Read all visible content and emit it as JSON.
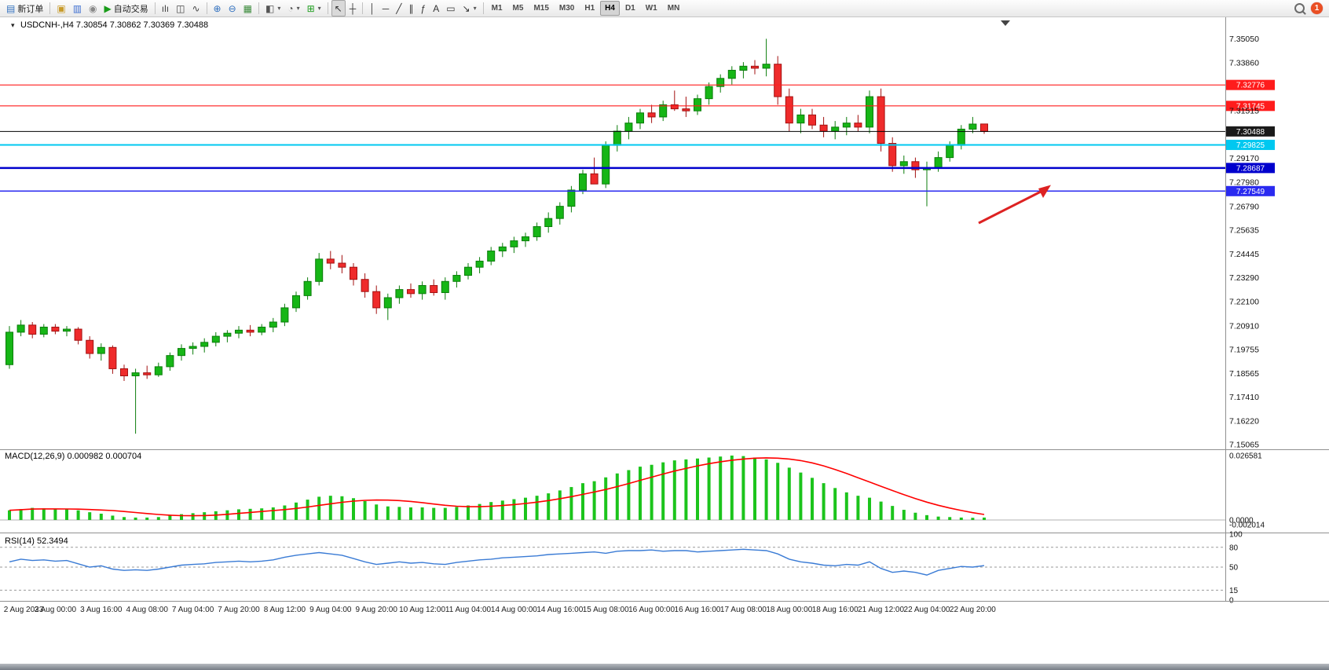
{
  "toolbar": {
    "items": [
      {
        "type": "button",
        "name": "new-order-button",
        "glyph": "▤",
        "glyph_color": "#2f6fbe",
        "label": "新订单"
      },
      {
        "type": "divider"
      },
      {
        "type": "button",
        "name": "chart-window-button",
        "glyph": "▣",
        "glyph_color": "#c89b2a"
      },
      {
        "type": "button",
        "name": "profiles-button",
        "glyph": "▥",
        "glyph_color": "#3f6fd1"
      },
      {
        "type": "button",
        "name": "metaquotes-community-button",
        "glyph": "◉",
        "glyph_color": "#888888"
      },
      {
        "type": "button",
        "name": "auto-trading-button",
        "glyph": "▶",
        "glyph_color": "#1a9c1a",
        "label": "自动交易"
      },
      {
        "type": "divider"
      },
      {
        "type": "button",
        "name": "bar-chart-button",
        "glyph": "ılı",
        "glyph_color": "#444444"
      },
      {
        "type": "button",
        "name": "candlestick-chart-button",
        "glyph": "◫",
        "glyph_color": "#444444"
      },
      {
        "type": "button",
        "name": "line-chart-button",
        "glyph": "∿",
        "glyph_color": "#444444"
      },
      {
        "type": "divider"
      },
      {
        "type": "button",
        "name": "zoom-in-button",
        "glyph": "⊕",
        "glyph_color": "#2f6fbe"
      },
      {
        "type": "button",
        "name": "zoom-out-button",
        "glyph": "⊖",
        "glyph_color": "#2f6fbe"
      },
      {
        "type": "button",
        "name": "tile-windows-button",
        "glyph": "▦",
        "glyph_color": "#3a8a3a"
      },
      {
        "type": "divider"
      },
      {
        "type": "button",
        "name": "new-chart-button",
        "glyph": "◧",
        "glyph_color": "#555555",
        "caret": true
      },
      {
        "type": "button",
        "name": "periods-button",
        "glyph": "◔",
        "glyph_color": "#555555",
        "caret": true
      },
      {
        "type": "button",
        "name": "indicators-button",
        "glyph": "⊞",
        "glyph_color": "#1a9c1a",
        "caret": true
      },
      {
        "type": "divider"
      },
      {
        "type": "button",
        "name": "cursor-button",
        "glyph": "↖",
        "glyph_color": "#333333",
        "active": true
      },
      {
        "type": "button",
        "name": "crosshair-button",
        "glyph": "┼",
        "glyph_color": "#333333"
      },
      {
        "type": "divider"
      },
      {
        "type": "button",
        "name": "vertical-line-button",
        "glyph": "│",
        "glyph_color": "#333333"
      },
      {
        "type": "button",
        "name": "horizontal-line-button",
        "glyph": "─",
        "glyph_color": "#333333"
      },
      {
        "type": "button",
        "name": "trendline-button",
        "glyph": "╱",
        "glyph_color": "#333333"
      },
      {
        "type": "button",
        "name": "equidistant-channel-button",
        "glyph": "∥",
        "glyph_color": "#333333"
      },
      {
        "type": "button",
        "name": "fibonacci-button",
        "glyph": "ƒ",
        "glyph_color": "#333333"
      },
      {
        "type": "button",
        "name": "text-button",
        "glyph": "A",
        "glyph_color": "#333333"
      },
      {
        "type": "button",
        "name": "text-label-button",
        "glyph": "▭",
        "glyph_color": "#333333"
      },
      {
        "type": "button",
        "name": "arrows-button",
        "glyph": "↘",
        "glyph_color": "#333333",
        "caret": true
      },
      {
        "type": "divider"
      }
    ],
    "timeframes": [
      {
        "label": "M1"
      },
      {
        "label": "M5"
      },
      {
        "label": "M15"
      },
      {
        "label": "M30"
      },
      {
        "label": "H1"
      },
      {
        "label": "H4",
        "active": true
      },
      {
        "label": "D1"
      },
      {
        "label": "W1"
      },
      {
        "label": "MN"
      }
    ],
    "notification_badge": "1"
  },
  "chart_data": {
    "type": "candlestick",
    "symbol": "USDCNH-,H4",
    "ohlc_display": {
      "open": "7.30854",
      "high": "7.30862",
      "low": "7.30369",
      "close": "7.30488"
    },
    "colors": {
      "up": "#16b616",
      "up_border": "#0b7d0b",
      "down": "#ef2b2b",
      "down_border": "#a31111",
      "macd_histogram": "#1cc41c",
      "macd_signal": "#ff0000",
      "rsi_line": "#3a7bd5",
      "arrow": "#dd2222"
    },
    "price_axis_labels": [
      "7.35050",
      "7.33860",
      "7.31515",
      "7.29170",
      "7.27980",
      "7.26790",
      "7.25635",
      "7.24445",
      "7.23290",
      "7.22100",
      "7.20910",
      "7.19755",
      "7.18565",
      "7.17410",
      "7.16220",
      "7.15065"
    ],
    "levels": [
      {
        "price": 7.32776,
        "label": "7.32776",
        "color": "#ff1c1c",
        "width": 1.2
      },
      {
        "price": 7.31745,
        "label": "7.31745",
        "color": "#ff1c1c",
        "width": 1.2
      },
      {
        "price": 7.30488,
        "label": "7.30488",
        "color": "#000000",
        "width": 1
      },
      {
        "price": 7.29825,
        "label": "7.29825",
        "color": "#00c8f0",
        "width": 2
      },
      {
        "price": 7.28687,
        "label": "7.28687",
        "color": "#0000cd",
        "width": 2.5
      },
      {
        "price": 7.27549,
        "label": "7.27549",
        "color": "#2a2af0",
        "width": 1.5
      }
    ],
    "time_labels": [
      "2 Aug 2023",
      "3 Aug 00:00",
      "3 Aug 16:00",
      "4 Aug 08:00",
      "7 Aug 04:00",
      "7 Aug 20:00",
      "8 Aug 12:00",
      "9 Aug 04:00",
      "9 Aug 20:00",
      "10 Aug 12:00",
      "11 Aug 04:00",
      "14 Aug 00:00",
      "14 Aug 16:00",
      "15 Aug 08:00",
      "16 Aug 00:00",
      "16 Aug 16:00",
      "17 Aug 08:00",
      "18 Aug 00:00",
      "18 Aug 16:00",
      "21 Aug 12:00",
      "22 Aug 04:00",
      "22 Aug 20:00"
    ],
    "candles": [
      [
        7.19,
        7.209,
        7.188,
        7.206
      ],
      [
        7.206,
        7.212,
        7.204,
        7.2095
      ],
      [
        7.2095,
        7.211,
        7.203,
        7.205
      ],
      [
        7.205,
        7.21,
        7.2035,
        7.2085
      ],
      [
        7.2085,
        7.21,
        7.205,
        7.2065
      ],
      [
        7.2065,
        7.209,
        7.204,
        7.2075
      ],
      [
        7.2075,
        7.2085,
        7.2,
        7.202
      ],
      [
        7.202,
        7.204,
        7.193,
        7.1955
      ],
      [
        7.1955,
        7.2005,
        7.192,
        7.1985
      ],
      [
        7.1985,
        7.1995,
        7.1855,
        7.188
      ],
      [
        7.188,
        7.19,
        7.182,
        7.1845
      ],
      [
        7.1845,
        7.188,
        7.156,
        7.186
      ],
      [
        7.186,
        7.1895,
        7.183,
        7.185
      ],
      [
        7.185,
        7.191,
        7.184,
        7.189
      ],
      [
        7.189,
        7.196,
        7.187,
        7.1945
      ],
      [
        7.1945,
        7.2,
        7.192,
        7.198
      ],
      [
        7.198,
        7.201,
        7.195,
        7.199
      ],
      [
        7.199,
        7.203,
        7.196,
        7.201
      ],
      [
        7.201,
        7.206,
        7.199,
        7.204
      ],
      [
        7.204,
        7.207,
        7.201,
        7.2055
      ],
      [
        7.2055,
        7.209,
        7.203,
        7.207
      ],
      [
        7.207,
        7.2095,
        7.204,
        7.206
      ],
      [
        7.206,
        7.21,
        7.2045,
        7.2085
      ],
      [
        7.2085,
        7.213,
        7.206,
        7.211
      ],
      [
        7.211,
        7.22,
        7.209,
        7.218
      ],
      [
        7.218,
        7.226,
        7.216,
        7.224
      ],
      [
        7.224,
        7.233,
        7.222,
        7.231
      ],
      [
        7.231,
        7.245,
        7.229,
        7.242
      ],
      [
        7.242,
        7.246,
        7.237,
        7.24
      ],
      [
        7.24,
        7.244,
        7.235,
        7.238
      ],
      [
        7.238,
        7.24,
        7.229,
        7.232
      ],
      [
        7.232,
        7.235,
        7.223,
        7.226
      ],
      [
        7.226,
        7.229,
        7.215,
        7.218
      ],
      [
        7.218,
        7.225,
        7.212,
        7.223
      ],
      [
        7.223,
        7.229,
        7.22,
        7.227
      ],
      [
        7.227,
        7.23,
        7.223,
        7.225
      ],
      [
        7.225,
        7.231,
        7.222,
        7.229
      ],
      [
        7.229,
        7.232,
        7.224,
        7.2255
      ],
      [
        7.2255,
        7.233,
        7.222,
        7.231
      ],
      [
        7.231,
        7.236,
        7.228,
        7.234
      ],
      [
        7.234,
        7.24,
        7.232,
        7.238
      ],
      [
        7.238,
        7.243,
        7.235,
        7.241
      ],
      [
        7.241,
        7.248,
        7.239,
        7.246
      ],
      [
        7.246,
        7.25,
        7.243,
        7.248
      ],
      [
        7.248,
        7.253,
        7.245,
        7.251
      ],
      [
        7.251,
        7.255,
        7.248,
        7.253
      ],
      [
        7.253,
        7.26,
        7.251,
        7.258
      ],
      [
        7.258,
        7.265,
        7.255,
        7.262
      ],
      [
        7.262,
        7.27,
        7.259,
        7.268
      ],
      [
        7.268,
        7.278,
        7.265,
        7.276
      ],
      [
        7.276,
        7.286,
        7.274,
        7.284
      ],
      [
        7.284,
        7.292,
        7.28,
        7.279
      ],
      [
        7.279,
        7.3,
        7.277,
        7.298
      ],
      [
        7.298,
        7.308,
        7.295,
        7.305
      ],
      [
        7.305,
        7.312,
        7.301,
        7.309
      ],
      [
        7.309,
        7.316,
        7.306,
        7.314
      ],
      [
        7.314,
        7.318,
        7.309,
        7.312
      ],
      [
        7.312,
        7.32,
        7.31,
        7.318
      ],
      [
        7.318,
        7.325,
        7.315,
        7.316
      ],
      [
        7.316,
        7.322,
        7.312,
        7.315
      ],
      [
        7.315,
        7.323,
        7.313,
        7.321
      ],
      [
        7.321,
        7.329,
        7.318,
        7.327
      ],
      [
        7.327,
        7.333,
        7.324,
        7.331
      ],
      [
        7.331,
        7.337,
        7.328,
        7.335
      ],
      [
        7.335,
        7.339,
        7.331,
        7.337
      ],
      [
        7.337,
        7.34,
        7.333,
        7.336
      ],
      [
        7.336,
        7.3505,
        7.332,
        7.338
      ],
      [
        7.338,
        7.342,
        7.318,
        7.322
      ],
      [
        7.322,
        7.326,
        7.305,
        7.309
      ],
      [
        7.309,
        7.316,
        7.304,
        7.313
      ],
      [
        7.313,
        7.316,
        7.306,
        7.308
      ],
      [
        7.308,
        7.312,
        7.302,
        7.305
      ],
      [
        7.305,
        7.31,
        7.301,
        7.307
      ],
      [
        7.307,
        7.312,
        7.303,
        7.309
      ],
      [
        7.309,
        7.313,
        7.305,
        7.307
      ],
      [
        7.307,
        7.325,
        7.304,
        7.322
      ],
      [
        7.322,
        7.326,
        7.295,
        7.299
      ],
      [
        7.299,
        7.302,
        7.285,
        7.288
      ],
      [
        7.288,
        7.293,
        7.284,
        7.29
      ],
      [
        7.29,
        7.292,
        7.282,
        7.286
      ],
      [
        7.286,
        7.29,
        7.268,
        7.287
      ],
      [
        7.287,
        7.295,
        7.285,
        7.292
      ],
      [
        7.292,
        7.3,
        7.29,
        7.298
      ],
      [
        7.298,
        7.308,
        7.296,
        7.306
      ],
      [
        7.306,
        7.312,
        7.304,
        7.3085
      ],
      [
        7.30854,
        7.30862,
        7.30369,
        7.30488
      ]
    ],
    "macd": {
      "label": "MACD(12,26,9)",
      "value_main": "0.000982",
      "value_signal": "0.000704",
      "axis_labels": [
        {
          "text": "0.026581",
          "value": 0.026581
        },
        {
          "text": "0.0000",
          "value": 0
        },
        {
          "text": "-0.002014",
          "value": -0.002014
        }
      ],
      "histogram": [
        0.004,
        0.0045,
        0.005,
        0.0048,
        0.0046,
        0.0044,
        0.004,
        0.0032,
        0.0026,
        0.0018,
        0.0012,
        0.001,
        0.001,
        0.0012,
        0.0018,
        0.0024,
        0.0028,
        0.0032,
        0.0036,
        0.004,
        0.0044,
        0.0046,
        0.0048,
        0.0052,
        0.006,
        0.0072,
        0.0084,
        0.0096,
        0.01,
        0.0098,
        0.009,
        0.0078,
        0.0064,
        0.0056,
        0.0054,
        0.0052,
        0.0052,
        0.005,
        0.005,
        0.0054,
        0.006,
        0.0066,
        0.0074,
        0.008,
        0.0086,
        0.0092,
        0.01,
        0.011,
        0.0122,
        0.0136,
        0.0152,
        0.016,
        0.0176,
        0.0192,
        0.0206,
        0.022,
        0.0228,
        0.0238,
        0.0246,
        0.025,
        0.0254,
        0.0258,
        0.0262,
        0.0266,
        0.0264,
        0.0258,
        0.025,
        0.0236,
        0.0216,
        0.0196,
        0.0174,
        0.0152,
        0.0132,
        0.0114,
        0.01,
        0.0092,
        0.0076,
        0.0058,
        0.0042,
        0.003,
        0.002,
        0.0014,
        0.0012,
        0.001,
        0.0009,
        0.001
      ]
    },
    "rsi": {
      "label": "RSI(14)",
      "value": "52.3494",
      "levels": [
        80,
        50,
        15
      ],
      "axis_labels": [
        {
          "text": "100",
          "value": 100
        },
        {
          "text": "80",
          "value": 80
        },
        {
          "text": "50",
          "value": 50
        },
        {
          "text": "15",
          "value": 15
        },
        {
          "text": "0",
          "value": 0
        }
      ],
      "values": [
        58,
        62,
        60,
        61,
        59,
        60,
        55,
        50,
        52,
        47,
        45,
        46,
        45,
        47,
        50,
        53,
        54,
        55,
        57,
        58,
        59,
        58,
        59,
        61,
        65,
        68,
        70,
        72,
        70,
        68,
        63,
        58,
        54,
        56,
        58,
        56,
        57,
        55,
        54,
        57,
        59,
        61,
        62,
        64,
        65,
        66,
        67,
        69,
        70,
        71,
        72,
        73,
        71,
        74,
        75,
        75,
        76,
        74,
        75,
        75,
        73,
        74,
        75,
        76,
        77,
        76,
        75,
        70,
        62,
        58,
        56,
        53,
        52,
        54,
        53,
        58,
        48,
        42,
        44,
        42,
        38,
        45,
        48,
        51,
        50,
        52.3
      ]
    },
    "annotation_arrow": {
      "color": "#dd2222"
    }
  }
}
